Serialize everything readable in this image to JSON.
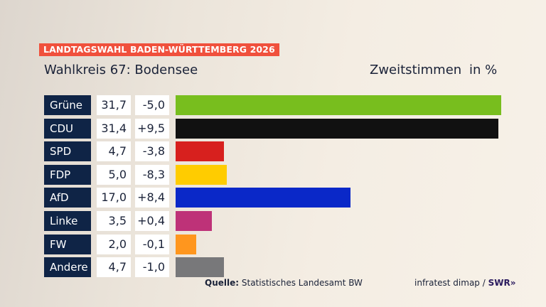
{
  "header": {
    "banner": "LANDTAGSWAHL BADEN-WÜRTTEMBERG 2026",
    "title": "Wahlkreis 67: Bodensee",
    "subtitle": "Zweitstimmen",
    "unit": "in %"
  },
  "chart_data": {
    "type": "bar",
    "orientation": "horizontal",
    "xlim": [
      0,
      32
    ],
    "categories": [
      "Grüne",
      "CDU",
      "SPD",
      "FDP",
      "AfD",
      "Linke",
      "FW",
      "Andere"
    ],
    "values": [
      31.7,
      31.4,
      4.7,
      5.0,
      17.0,
      3.5,
      2.0,
      4.7
    ],
    "value_labels": [
      "31,7",
      "31,4",
      "4,7",
      "5,0",
      "17,0",
      "3,5",
      "2,0",
      "4,7"
    ],
    "change_labels": [
      "-5,0",
      "+9,5",
      "-3,8",
      "-8,3",
      "+8,4",
      "+0,4",
      "-0,1",
      "-1,0"
    ],
    "colors": [
      "#78be1e",
      "#111111",
      "#d7201e",
      "#ffcc00",
      "#0a28c8",
      "#be3278",
      "#ff961e",
      "#78787a"
    ]
  },
  "footer": {
    "source_label": "Quelle:",
    "source": "Statistisches Landesamt BW",
    "credit": "infratest dimap /",
    "brand": "SWR»"
  }
}
